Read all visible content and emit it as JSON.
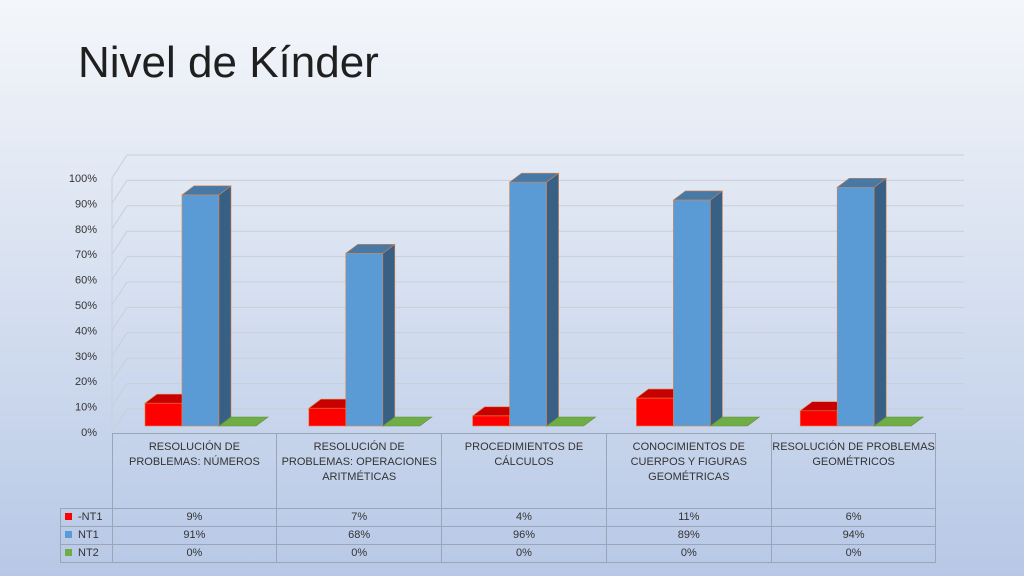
{
  "slide": {
    "title": "Nivel de Kínder"
  },
  "colors": {
    "NT1_red": "#ff0000",
    "NT1": "#5b9bd5",
    "NT2": "#70ad47"
  },
  "chart_data": {
    "type": "bar",
    "title": "Nivel de Kínder",
    "categories": [
      "RESOLUCIÓN DE PROBLEMAS:  NÚMEROS",
      "RESOLUCIÓN DE PROBLEMAS: OPERACIONES ARITMÉTICAS",
      "PROCEDIMIENTOS DE CÁLCULOS",
      "CONOCIMIENTOS DE CUERPOS Y FIGURAS GEOMÉTRICAS",
      "RESOLUCIÓN DE PROBLEMAS GEOMÉTRICOS"
    ],
    "series": [
      {
        "name": "-NT1",
        "values": [
          9,
          7,
          4,
          11,
          6
        ],
        "labels": [
          "9%",
          "7%",
          "4%",
          "11%",
          "6%"
        ],
        "color": "#ff0000"
      },
      {
        "name": "NT1",
        "values": [
          91,
          68,
          96,
          89,
          94
        ],
        "labels": [
          "91%",
          "68%",
          "96%",
          "89%",
          "94%"
        ],
        "color": "#5b9bd5"
      },
      {
        "name": "NT2",
        "values": [
          0,
          0,
          0,
          0,
          0
        ],
        "labels": [
          "0%",
          "0%",
          "0%",
          "0%",
          "0%"
        ],
        "color": "#70ad47"
      }
    ],
    "yticks": [
      "0%",
      "10%",
      "20%",
      "30%",
      "40%",
      "50%",
      "60%",
      "70%",
      "80%",
      "90%",
      "100%"
    ],
    "ylim": [
      0,
      100
    ],
    "grid": true,
    "three_d": true,
    "legend": "data-table"
  }
}
